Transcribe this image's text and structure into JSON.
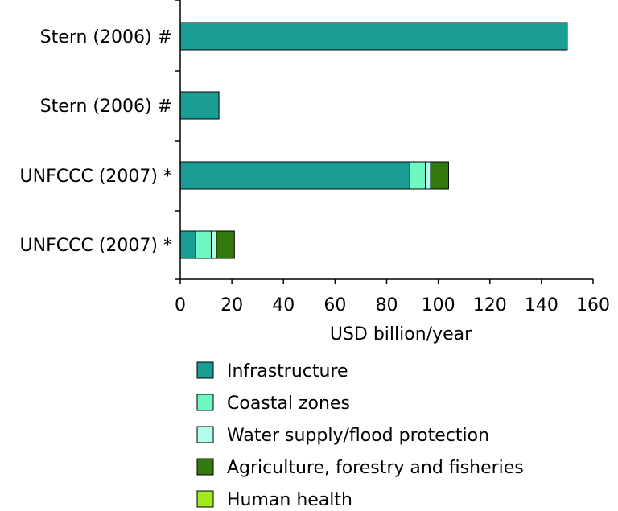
{
  "chart_data": {
    "type": "bar",
    "orientation": "horizontal",
    "stacked": true,
    "categories": [
      "Stern (2006) #",
      "Stern (2006) #",
      "UNFCCC (2007) *",
      "UNFCCC (2007) *"
    ],
    "series": [
      {
        "name": "Infrastructure",
        "color": "#1a9e94",
        "values": [
          150,
          15,
          89,
          6
        ]
      },
      {
        "name": "Coastal zones",
        "color": "#6ff7c2",
        "values": [
          0,
          0,
          6,
          6
        ]
      },
      {
        "name": "Water supply/flood protection",
        "color": "#b3fbea",
        "values": [
          0,
          0,
          2,
          2
        ]
      },
      {
        "name": "Agriculture, forestry and fisheries",
        "color": "#337a0e",
        "values": [
          0,
          0,
          7,
          7
        ]
      },
      {
        "name": "Human health",
        "color": "#a2ea1e",
        "values": [
          0,
          0,
          0,
          0
        ]
      }
    ],
    "xlabel": "USD billion/year",
    "ylabel": "",
    "xlim": [
      0,
      160
    ],
    "xticks": [
      0,
      20,
      40,
      60,
      80,
      100,
      120,
      140,
      160
    ],
    "grid": false,
    "legend_position": "bottom"
  }
}
